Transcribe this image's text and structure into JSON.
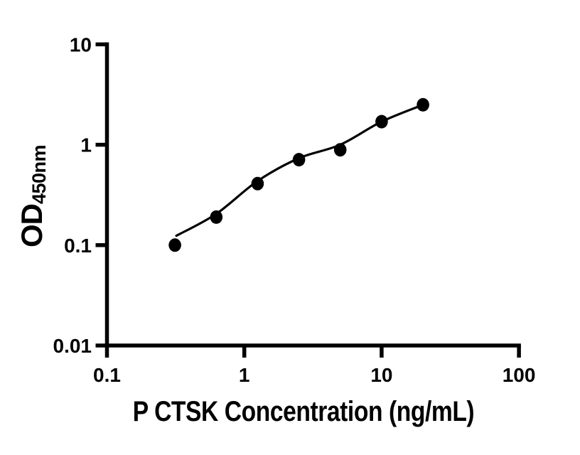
{
  "figure": {
    "background": "#ffffff",
    "ink_color": "#000000"
  },
  "chart_data": {
    "type": "scatter",
    "title": "",
    "xlabel": "P CTSK Concentration (ng/mL)",
    "ylabel": "OD",
    "ylabel_subscript": "450nm",
    "x_scale": "log",
    "y_scale": "log",
    "xlim": [
      0.1,
      100
    ],
    "ylim": [
      0.01,
      10
    ],
    "x_ticks": [
      0.1,
      1,
      10,
      100
    ],
    "x_tick_labels": [
      "0.1",
      "1",
      "10",
      "100"
    ],
    "y_ticks": [
      0.01,
      0.1,
      1,
      10
    ],
    "y_tick_labels": [
      "0.01",
      "0.1",
      "1",
      "10"
    ],
    "grid": false,
    "legend": "none",
    "series": [
      {
        "name": "fit-curve",
        "type": "line",
        "color": "#000000",
        "x": [
          0.32,
          0.625,
          1.25,
          2.5,
          5,
          10,
          20
        ],
        "y": [
          0.124,
          0.205,
          0.435,
          0.735,
          1.0,
          1.7,
          2.5
        ]
      },
      {
        "name": "standard-points",
        "type": "points",
        "marker": "filled-circle",
        "color": "#000000",
        "x": [
          0.3125,
          0.625,
          1.25,
          2.5,
          5,
          10,
          20
        ],
        "y": [
          0.1,
          0.19,
          0.41,
          0.71,
          0.89,
          1.7,
          2.5
        ]
      }
    ]
  }
}
